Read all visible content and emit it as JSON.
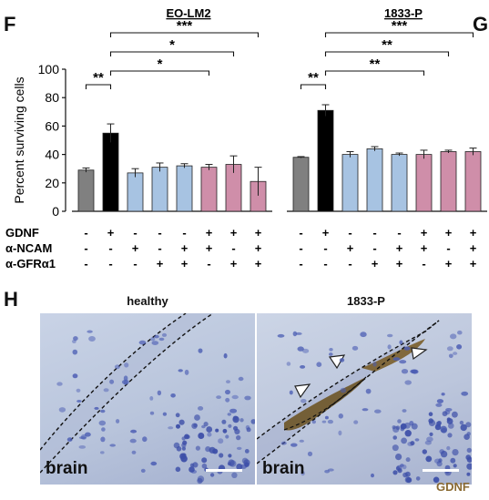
{
  "panel_letters": {
    "F": "F",
    "G": "G",
    "H": "H"
  },
  "chart_data": {
    "type": "bar",
    "ylabel": "Percent surviving cells",
    "ylim": [
      0,
      100
    ],
    "yticks": [
      0,
      20,
      40,
      60,
      80,
      100
    ],
    "grid": false,
    "legend": "none",
    "colors": [
      "#808080",
      "#000000",
      "#a7c3e2",
      "#a7c3e2",
      "#a7c3e2",
      "#cf8ea9",
      "#cf8ea9",
      "#cf8ea9"
    ],
    "treatments": {
      "row_labels": [
        "GDNF",
        "α-NCAM",
        "α-GFRα1"
      ],
      "columns": [
        [
          "-",
          "-",
          "-"
        ],
        [
          "+",
          "-",
          "-"
        ],
        [
          "-",
          "+",
          "-"
        ],
        [
          "-",
          "-",
          "+"
        ],
        [
          "-",
          "+",
          "+"
        ],
        [
          "+",
          "+",
          "-"
        ],
        [
          "+",
          "-",
          "+"
        ],
        [
          "+",
          "+",
          "+"
        ]
      ]
    },
    "groups": [
      {
        "title": "EO-LM2",
        "values": [
          29,
          55,
          27,
          31,
          32,
          31,
          33,
          21
        ],
        "errors": [
          1.5,
          6.5,
          3,
          3,
          1.5,
          2,
          6,
          10
        ],
        "significance": [
          {
            "from": 1,
            "to": 7,
            "label": "***"
          },
          {
            "from": 1,
            "to": 6,
            "label": "*"
          },
          {
            "from": 1,
            "to": 5,
            "label": "*"
          },
          {
            "from": 0,
            "to": 1,
            "label": "**"
          }
        ]
      },
      {
        "title": "1833-P",
        "values": [
          38,
          71,
          40,
          44,
          40,
          40,
          42,
          42
        ],
        "errors": [
          0.5,
          4,
          2,
          1.5,
          1,
          3,
          1,
          2.5
        ],
        "significance": [
          {
            "from": 1,
            "to": 7,
            "label": "***"
          },
          {
            "from": 1,
            "to": 6,
            "label": "**"
          },
          {
            "from": 1,
            "to": 5,
            "label": "**"
          },
          {
            "from": 0,
            "to": 1,
            "label": "**"
          }
        ]
      }
    ]
  },
  "micrographs": {
    "panels": [
      {
        "title": "healthy",
        "region_label": "brain"
      },
      {
        "title": "1833-P",
        "region_label": "brain"
      }
    ],
    "stain_label": "GDNF",
    "stain_color": "#8a6a32",
    "nuclei_color": "#4a5cb3"
  }
}
